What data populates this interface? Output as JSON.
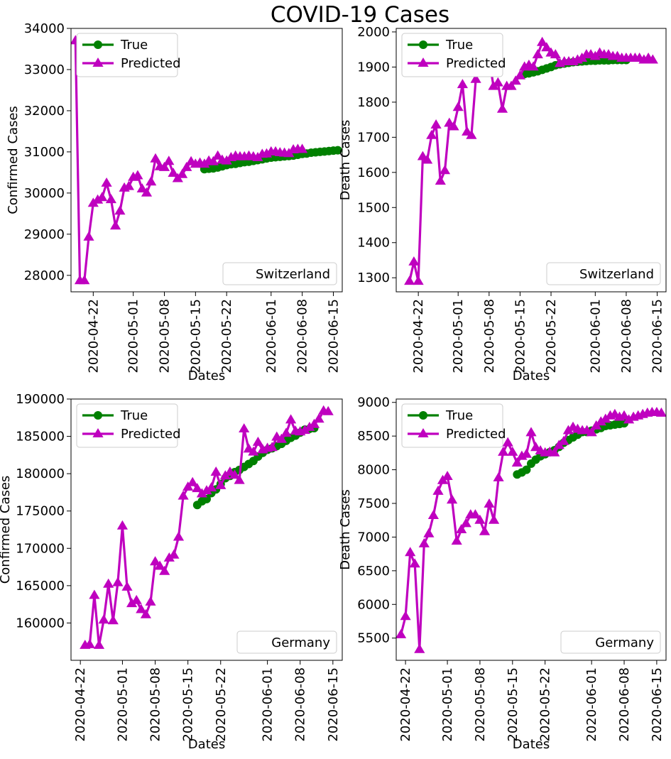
{
  "title": "COVID-19 Cases",
  "colors": {
    "true": "#008000",
    "predicted": "#bf00bf"
  },
  "chart_data": [
    {
      "type": "line",
      "country": "Switzerland",
      "xlabel": "Dates",
      "ylabel": "Confirmed Cases",
      "x_ticks": [
        "2020-04-22",
        "2020-05-01",
        "2020-05-08",
        "2020-05-15",
        "2020-05-22",
        "2020-06-01",
        "2020-06-08",
        "2020-06-15"
      ],
      "xlim": [
        "2020-04-17",
        "2020-06-17"
      ],
      "ylim": [
        27600,
        34000
      ],
      "y_ticks": [
        28000,
        29000,
        30000,
        31000,
        32000,
        33000,
        34000
      ],
      "legend": [
        "True",
        "Predicted"
      ],
      "series": [
        {
          "name": "True",
          "marker": "circle",
          "start": "2020-05-17",
          "values": [
            30580,
            30590,
            30600,
            30620,
            30650,
            30680,
            30700,
            30710,
            30730,
            30750,
            30760,
            30780,
            30800,
            30820,
            30840,
            30860,
            30870,
            30880,
            30890,
            30900,
            30910,
            30930,
            30950,
            30960,
            30980,
            30990,
            31000,
            31010,
            31020,
            31030,
            31040
          ]
        },
        {
          "name": "Predicted",
          "marker": "triangle",
          "start": "2020-04-18",
          "values": [
            33700,
            27870,
            27870,
            28930,
            29750,
            29830,
            29890,
            30240,
            29840,
            29200,
            29560,
            30120,
            30160,
            30380,
            30420,
            30100,
            30000,
            30270,
            30830,
            30640,
            30620,
            30770,
            30480,
            30350,
            30450,
            30620,
            30760,
            30700,
            30730,
            30700,
            30780,
            30760,
            30900,
            30800,
            30780,
            30860,
            30900,
            30880,
            30880,
            30900,
            30880,
            30860,
            30940,
            30950,
            31000,
            31000,
            30980,
            30970,
            30960,
            31050,
            31060,
            31060
          ]
        }
      ]
    },
    {
      "type": "line",
      "country": "Switzerland",
      "xlabel": "Dates",
      "ylabel": "Death Cases",
      "x_ticks": [
        "2020-04-22",
        "2020-05-01",
        "2020-05-08",
        "2020-05-15",
        "2020-05-22",
        "2020-06-01",
        "2020-06-08",
        "2020-06-15"
      ],
      "xlim": [
        "2020-04-17",
        "2020-06-17"
      ],
      "ylim": [
        1260,
        2010
      ],
      "y_ticks": [
        1300,
        1400,
        1500,
        1600,
        1700,
        1800,
        1900,
        2000
      ],
      "legend": [
        "True",
        "Predicted"
      ],
      "series": [
        {
          "name": "True",
          "marker": "circle",
          "start": "2020-05-16",
          "values": [
            1880,
            1882,
            1885,
            1888,
            1892,
            1896,
            1900,
            1905,
            1908,
            1910,
            1912,
            1914,
            1915,
            1916,
            1917,
            1918,
            1918,
            1919,
            1919,
            1919,
            1920,
            1920,
            1920,
            1920
          ]
        },
        {
          "name": "Predicted",
          "marker": "triangle",
          "start": "2020-04-20",
          "values": [
            1290,
            1345,
            1290,
            1645,
            1635,
            1705,
            1735,
            1575,
            1605,
            1740,
            1730,
            1785,
            1850,
            1715,
            1705,
            1865,
            1915,
            1925,
            1925,
            1845,
            1855,
            1780,
            1845,
            1845,
            1860,
            1875,
            1900,
            1905,
            1900,
            1935,
            1970,
            1955,
            1940,
            1935,
            1910,
            1915,
            1915,
            1915,
            1920,
            1925,
            1935,
            1935,
            1930,
            1940,
            1935,
            1935,
            1930,
            1930,
            1925,
            1925,
            1925,
            1925,
            1925,
            1920,
            1925,
            1920
          ]
        }
      ]
    },
    {
      "type": "line",
      "country": "Germany",
      "xlabel": "Dates",
      "ylabel": "Confirmed Cases",
      "x_ticks": [
        "2020-04-22",
        "2020-05-01",
        "2020-05-08",
        "2020-05-15",
        "2020-05-22",
        "2020-06-01",
        "2020-06-08",
        "2020-06-15"
      ],
      "xlim": [
        "2020-04-20",
        "2020-06-17"
      ],
      "ylim": [
        155000,
        190000
      ],
      "y_ticks": [
        160000,
        165000,
        170000,
        175000,
        180000,
        185000,
        190000
      ],
      "legend": [
        "True",
        "Predicted"
      ],
      "series": [
        {
          "name": "True",
          "marker": "circle",
          "start": "2020-05-17",
          "values": [
            175800,
            176300,
            176600,
            177400,
            177900,
            178600,
            179400,
            179700,
            180200,
            180500,
            180900,
            181300,
            181700,
            182300,
            182800,
            183200,
            183400,
            183700,
            184000,
            184400,
            184800,
            185100,
            185500,
            185900,
            186000,
            186100
          ]
        },
        {
          "name": "Predicted",
          "marker": "triangle",
          "start": "2020-04-23",
          "values": [
            157000,
            157100,
            163700,
            157000,
            160400,
            165200,
            160300,
            165400,
            173000,
            164800,
            162600,
            163000,
            161800,
            161100,
            162800,
            168200,
            167600,
            166900,
            168700,
            169100,
            171500,
            177000,
            178200,
            178800,
            178000,
            177300,
            177700,
            178100,
            180200,
            178400,
            179700,
            180200,
            179800,
            179100,
            186000,
            183300,
            182900,
            184200,
            183200,
            183400,
            183500,
            184900,
            184600,
            185400,
            187200,
            185700,
            185600,
            185800,
            186200,
            186600,
            187300,
            188400,
            188300
          ]
        }
      ]
    },
    {
      "type": "line",
      "country": "Germany",
      "xlabel": "Dates",
      "ylabel": "Death Cases",
      "x_ticks": [
        "2020-04-22",
        "2020-05-01",
        "2020-05-08",
        "2020-05-15",
        "2020-05-22",
        "2020-06-01",
        "2020-06-08",
        "2020-06-15"
      ],
      "xlim": [
        "2020-04-20",
        "2020-06-17"
      ],
      "ylim": [
        5170,
        9050
      ],
      "y_ticks": [
        5500,
        6000,
        6500,
        7000,
        7500,
        8000,
        8500,
        9000
      ],
      "legend": [
        "True",
        "Predicted"
      ],
      "series": [
        {
          "name": "True",
          "marker": "circle",
          "start": "2020-05-16",
          "values": [
            7930,
            7960,
            8000,
            8090,
            8150,
            8200,
            8230,
            8260,
            8290,
            8340,
            8400,
            8440,
            8480,
            8520,
            8560,
            8560,
            8580,
            8600,
            8620,
            8650,
            8660,
            8670,
            8680,
            8690
          ]
        },
        {
          "name": "Predicted",
          "marker": "triangle",
          "start": "2020-04-21",
          "values": [
            5550,
            5820,
            6770,
            6600,
            5330,
            6900,
            7050,
            7320,
            7680,
            7840,
            7900,
            7550,
            6940,
            7110,
            7200,
            7330,
            7330,
            7250,
            7080,
            7490,
            7250,
            7880,
            8260,
            8400,
            8260,
            8100,
            8200,
            8230,
            8550,
            8330,
            8280,
            8250,
            8260,
            8250,
            8360,
            8420,
            8580,
            8630,
            8600,
            8580,
            8580,
            8550,
            8650,
            8710,
            8750,
            8800,
            8820,
            8780,
            8800,
            8740,
            8780,
            8800,
            8820,
            8840,
            8850,
            8850,
            8840
          ]
        }
      ]
    }
  ]
}
